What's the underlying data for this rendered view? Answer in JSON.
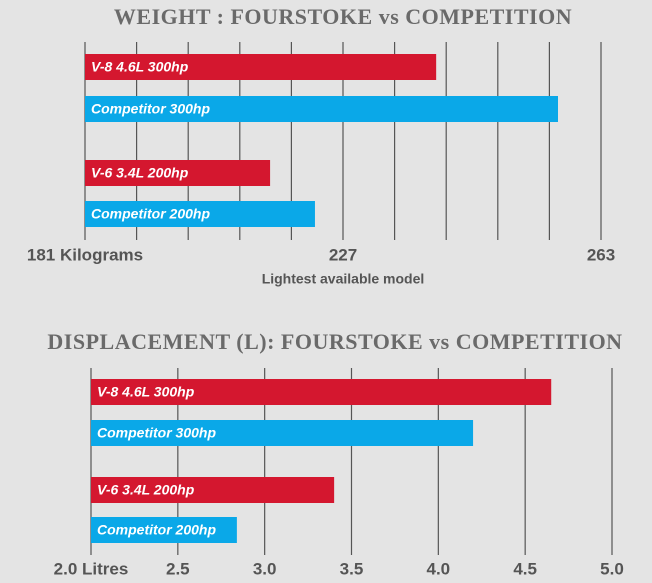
{
  "chart_data": [
    {
      "type": "bar",
      "orientation": "horizontal",
      "title": "WEIGHT : FOURSTOKE vs COMPETITION",
      "categories": [
        "V-8 4.6L 300hp",
        "Competitor 300hp",
        "V-6 3.4L 200hp",
        "Competitor 200hp"
      ],
      "values": [
        240,
        257,
        214,
        222
      ],
      "colors": [
        "#d4172f",
        "#0aa8e8",
        "#d4172f",
        "#0aa8e8"
      ],
      "xlim": [
        181,
        263
      ],
      "xticks": [
        {
          "value": 181,
          "label": "181 Kilograms"
        },
        227,
        263
      ],
      "xlabel": "Lightest available model",
      "grid": true
    },
    {
      "type": "bar",
      "orientation": "horizontal",
      "title": "DISPLACEMENT (L): FOURSTOKE vs COMPETITION",
      "categories": [
        "V-8 4.6L 300hp",
        "Competitor 300hp",
        "V-6 3.4L 200hp",
        "Competitor 200hp"
      ],
      "values": [
        4.65,
        4.2,
        3.4,
        2.84
      ],
      "colors": [
        "#d4172f",
        "#0aa8e8",
        "#d4172f",
        "#0aa8e8"
      ],
      "xlim": [
        2,
        5
      ],
      "xticks": [
        {
          "value": 2,
          "label": "2.0 Litres"
        },
        2.5,
        {
          "value": 3,
          "label": "3.0"
        },
        3.5,
        {
          "value": 4,
          "label": "4.0"
        },
        4.5,
        {
          "value": 5,
          "label": "5.0"
        }
      ],
      "grid": true
    }
  ]
}
